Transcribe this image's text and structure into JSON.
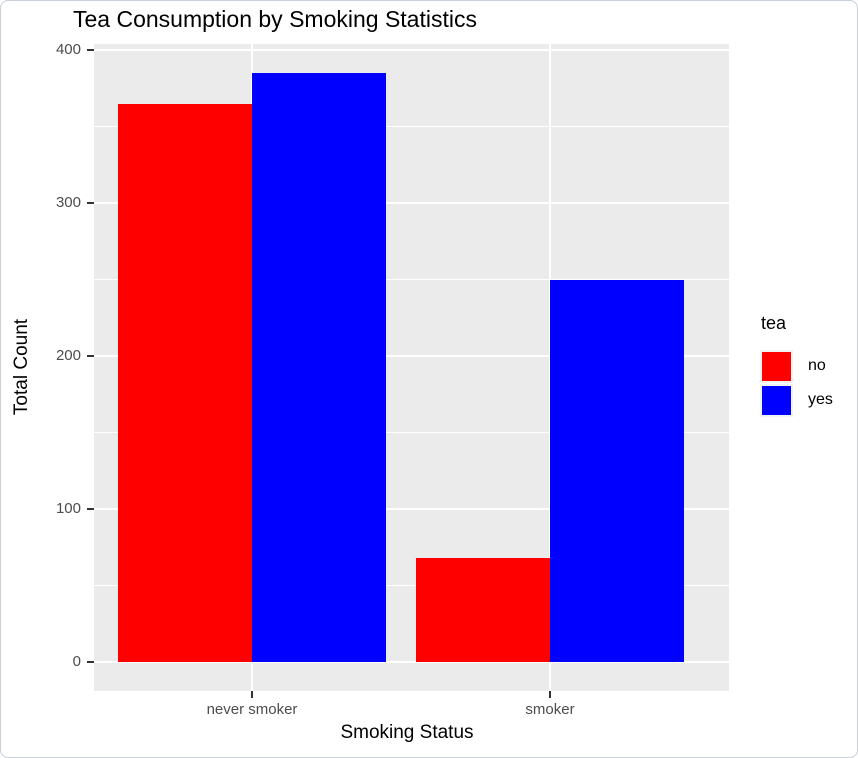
{
  "chart_data": {
    "type": "bar",
    "title": "Tea Consumption by Smoking Statistics",
    "xlabel": "Smoking Status",
    "ylabel": "Total Count",
    "categories": [
      "never smoker",
      "smoker"
    ],
    "series": [
      {
        "name": "no",
        "color": "#ff0000",
        "values": [
          365,
          68
        ]
      },
      {
        "name": "yes",
        "color": "#0000ff",
        "values": [
          385,
          250
        ]
      }
    ],
    "legend_title": "tea",
    "legend_position": "right",
    "ylim": [
      0,
      400
    ],
    "yticks": [
      0,
      100,
      200,
      300,
      400
    ],
    "yticks_minor": [
      50,
      150,
      250,
      350
    ],
    "grid": "major-and-minor",
    "bar_layout": "dodged"
  },
  "style": {
    "panel_bg": "#ebebeb",
    "grid_color": "#ffffff",
    "tick_label_color": "#4d4d4d",
    "axis_title_color": "#000000",
    "tick_mark_color": "#333333",
    "legend_key_bg": "#f2f2f2",
    "frame_border_color": "#c9cfd6",
    "background": "#ffffff"
  }
}
